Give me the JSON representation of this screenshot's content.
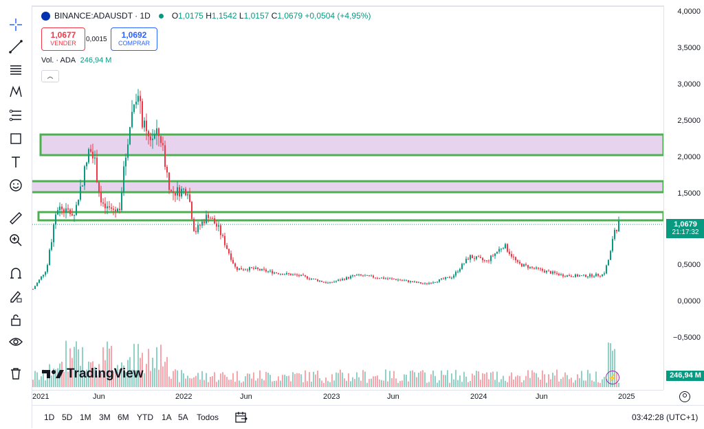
{
  "legend": {
    "symbol": "BINANCE:ADAUSDT · 1D",
    "open_label": "O",
    "open": "1,0175",
    "high_label": "H",
    "high": "1,1542",
    "low_label": "L",
    "low": "1,0157",
    "close_label": "C",
    "close": "1,0679",
    "change": "+0,0504 (+4,95%)"
  },
  "trade": {
    "sell_price": "1,0677",
    "sell_label": "VENDER",
    "spread": "0,0015",
    "buy_price": "1,0692",
    "buy_label": "COMPRAR"
  },
  "volume": {
    "label": "Vol. · ADA",
    "value": "246,94 M"
  },
  "price_axis": {
    "ticks": [
      "4,0000",
      "3,5000",
      "3,0000",
      "2,5000",
      "2,0000",
      "1,5000",
      "1,0000",
      "0,5000",
      "0,0000",
      "−0,5000"
    ],
    "current_price": "1,0679",
    "countdown": "21:17:32",
    "volume_tag": "246,94 M"
  },
  "time_axis": {
    "ticks": [
      "2021",
      "Jun",
      "2022",
      "Jun",
      "2023",
      "Jun",
      "2024",
      "Jun",
      "2025"
    ]
  },
  "ranges": [
    "1D",
    "5D",
    "1M",
    "3M",
    "6M",
    "YTD",
    "1A",
    "5A",
    "Todos"
  ],
  "clock": "03:42:28 (UTC+1)",
  "watermark": "TradingView",
  "colors": {
    "up": "#089981",
    "down": "#f23645",
    "zone_fill": "#e8d3ee",
    "zone_border": "#4caf50"
  },
  "icons": [
    "crosshair-icon",
    "trendline-icon",
    "fib-icon",
    "pattern-icon",
    "projection-icon",
    "shapes-icon",
    "text-icon",
    "emoji-icon",
    "ruler-icon",
    "zoom-icon",
    "magnet-icon",
    "lock-draw-icon",
    "lock-icon",
    "eye-icon",
    "trash-icon"
  ]
}
